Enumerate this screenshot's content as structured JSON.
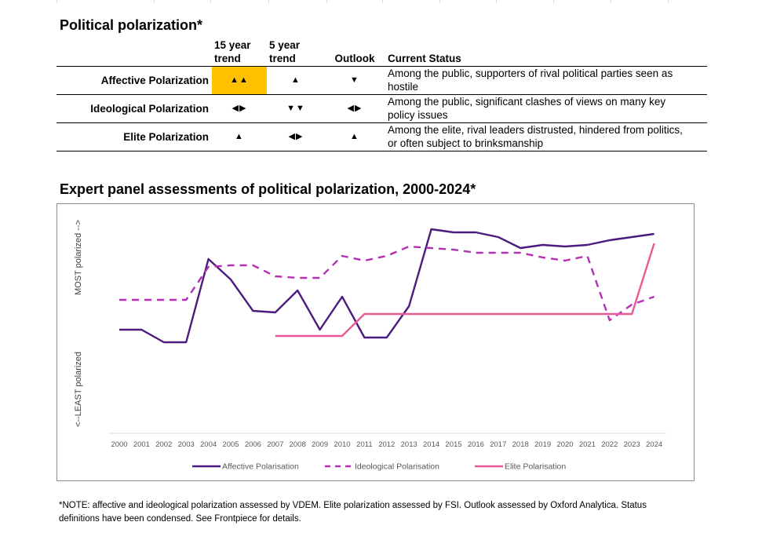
{
  "table": {
    "title": "Political polarization*",
    "headers": {
      "trend15": [
        "15 year",
        "trend"
      ],
      "trend5": [
        "5 year",
        "trend"
      ],
      "outlook": "Outlook",
      "status": "Current Status"
    },
    "rows": [
      {
        "name": "Affective Polarization",
        "trend15": "▲▲",
        "trend5": "▲",
        "outlook": "▼",
        "status": [
          "Among the public, supporters of rival political parties seen as",
          "hostile"
        ],
        "highlight15": true
      },
      {
        "name": "Ideological Polarization",
        "trend15": "◀▶",
        "trend5": "▼▼",
        "outlook": "◀▶",
        "status": [
          "Among the public, significant clashes of views on many key",
          "policy issues"
        ],
        "highlight15": false
      },
      {
        "name": "Elite Polarization",
        "trend15": "▲",
        "trend5": "◀▶",
        "outlook": "▲",
        "status": [
          "Among the elite, rival leaders distrusted, hindered from politics,",
          "or often subject to brinksmanship"
        ],
        "highlight15": false
      }
    ]
  },
  "chart_data": {
    "type": "line",
    "title": "Expert panel assessments of political polarization, 2000-2024*",
    "ylabel_top": "MOST polarized -->",
    "ylabel_bottom": "<--LEAST polarized",
    "x": [
      "2000",
      "2001",
      "2002",
      "2003",
      "2004",
      "2005",
      "2006",
      "2007",
      "2008",
      "2009",
      "2010",
      "2011",
      "2012",
      "2013",
      "2014",
      "2015",
      "2016",
      "2017",
      "2018",
      "2019",
      "2020",
      "2021",
      "2022",
      "2023",
      "2024"
    ],
    "ylim": [
      0,
      100
    ],
    "grid": false,
    "legend_position": "bottom",
    "series": [
      {
        "name": "Affective Polarisation",
        "color": "#4b1b7f",
        "style": "solid",
        "values": [
          34,
          34,
          26,
          26,
          79,
          66,
          46,
          45,
          59,
          34,
          55,
          29,
          29,
          49,
          98,
          96,
          96,
          93,
          86,
          88,
          87,
          88,
          91,
          93,
          95
        ]
      },
      {
        "name": "Ideological Polarisation",
        "color": "#b42fb4",
        "style": "dashed",
        "values": [
          53,
          53,
          53,
          53,
          74,
          75,
          75,
          68,
          67,
          67,
          81,
          78,
          81,
          87,
          86,
          85,
          83,
          83,
          83,
          80,
          78,
          81,
          40,
          50,
          55
        ]
      },
      {
        "name": "Elite Polarisation",
        "color": "#e85a95",
        "style": "solid",
        "values": [
          null,
          null,
          null,
          null,
          null,
          null,
          null,
          30,
          30,
          30,
          30,
          44,
          44,
          44,
          44,
          44,
          44,
          44,
          44,
          44,
          44,
          44,
          44,
          44,
          89
        ]
      }
    ]
  },
  "note": [
    "*NOTE: affective and ideological polarization assessed by VDEM. Elite polarization assessed by FSI. Outlook assessed by Oxford Analytica. Status",
    "definitions have been condensed. See Frontpiece for details."
  ]
}
